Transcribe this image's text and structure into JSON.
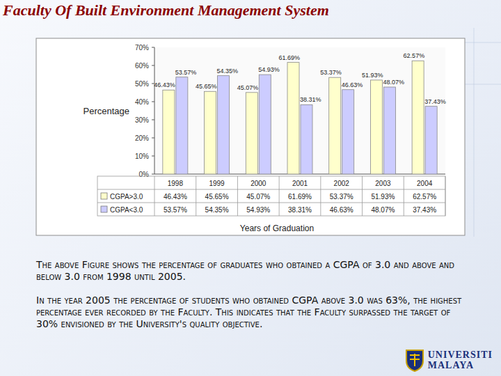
{
  "page": {
    "title": "Faculty Of Built Environment Management System",
    "paragraphs": [
      "The above Figure shows the percentage of graduates who obtained a CGPA of 3.0 and above and below 3.0 from 1998 until 2005.",
      "In the year 2005 the percentage of students who obtained CGPA above 3.0 was 63%, the highest percentage ever recorded by the Faculty. This indicates that the Faculty surpassed the target of 30% envisioned by the University's quality objective."
    ],
    "logo": [
      "UNIVERSITI",
      "MALAYA"
    ]
  },
  "chart_data": {
    "type": "bar",
    "x_label": "Years of Graduation",
    "y_label": "Percentage",
    "categories": [
      "1998",
      "1999",
      "2000",
      "2001",
      "2002",
      "2003",
      "2004"
    ],
    "series": [
      {
        "name": "CGPA>3.0",
        "color": "#ffffcc",
        "values": [
          46.43,
          45.65,
          45.07,
          61.69,
          53.37,
          51.93,
          62.57
        ],
        "value_labels": [
          "46.43%",
          "45.65%",
          "45.07%",
          "61.69%",
          "53.37%",
          "51.93%",
          "62.57%"
        ]
      },
      {
        "name": "CGPA<3.0",
        "color": "#ccccff",
        "values": [
          53.57,
          54.35,
          54.93,
          38.31,
          46.63,
          48.07,
          37.43
        ],
        "value_labels": [
          "53.57%",
          "54.35%",
          "54.93%",
          "38.31%",
          "46.63%",
          "48.07%",
          "37.43%"
        ]
      }
    ],
    "ylim": [
      0,
      70
    ],
    "yticks": [
      {
        "value": 0,
        "label": "0%"
      },
      {
        "value": 10,
        "label": "10%"
      },
      {
        "value": 20,
        "label": "20%"
      },
      {
        "value": 30,
        "label": "30%"
      },
      {
        "value": 40,
        "label": "40%"
      },
      {
        "value": 50,
        "label": "50%"
      },
      {
        "value": 60,
        "label": "60%"
      },
      {
        "value": 70,
        "label": "70%"
      }
    ],
    "grid": false,
    "data_labels": true
  }
}
